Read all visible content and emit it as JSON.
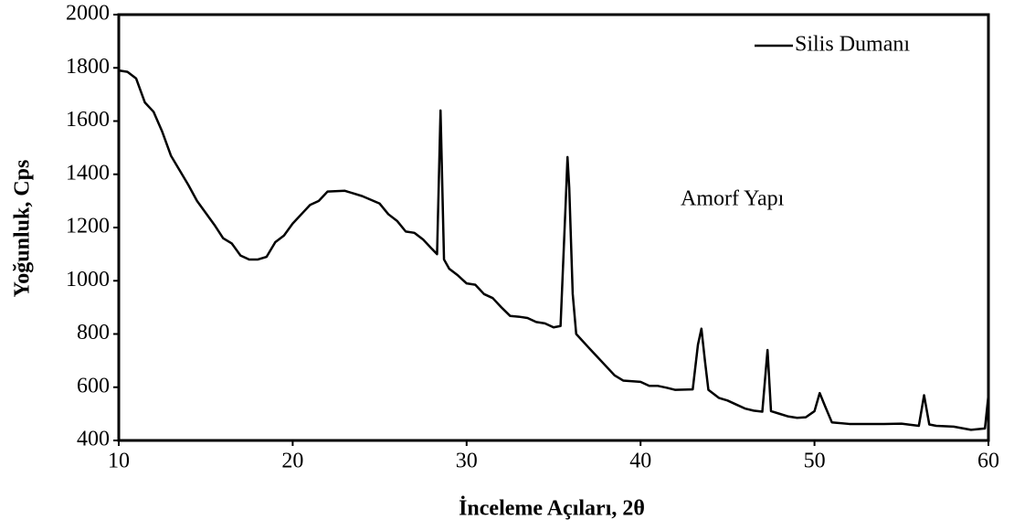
{
  "chart_data": {
    "type": "line",
    "x_label": "İnceleme Açıları, 2θ",
    "y_label": "Yoğunluk, Cps",
    "annotation": "Amorf Yapı",
    "legend": "upper right",
    "xlim": [
      10,
      60
    ],
    "xticks": [
      10,
      20,
      30,
      40,
      50,
      60
    ],
    "ylim": [
      400,
      2000
    ],
    "yticks": [
      400,
      600,
      800,
      1000,
      1200,
      1400,
      1600,
      1800,
      2000
    ],
    "grid": false,
    "x": [
      10,
      10.5,
      11,
      11.5,
      12,
      12.5,
      13,
      14,
      14.5,
      15,
      15.5,
      16,
      16.5,
      17,
      17.5,
      18,
      18.5,
      19,
      19.5,
      20,
      20.5,
      21,
      21.5,
      22,
      23,
      23.5,
      24,
      25,
      25.5,
      26,
      26.5,
      27,
      27.5,
      28,
      28.3,
      28.5,
      28.7,
      29,
      29.5,
      30,
      30.5,
      31,
      31.5,
      32,
      32.5,
      33,
      33.5,
      34,
      34.5,
      35,
      35.4,
      35.7,
      35.8,
      35.9,
      36.1,
      36.3,
      37,
      37.5,
      38,
      38.5,
      39,
      40,
      40.5,
      41,
      41.5,
      42,
      43,
      43.3,
      43.5,
      43.7,
      43.9,
      44.5,
      45,
      45.5,
      46,
      46.5,
      47,
      47.3,
      47.5,
      48,
      48.5,
      49,
      49.5,
      50,
      50.3,
      50.6,
      51,
      52,
      53,
      54,
      55,
      56,
      56.3,
      56.6,
      57,
      58,
      59,
      59.8,
      60
    ],
    "series": [
      {
        "name": "Silis Dumanı",
        "color": "#000000",
        "values": [
          1790,
          1785,
          1760,
          1670,
          1635,
          1560,
          1470,
          1360,
          1300,
          1255,
          1210,
          1160,
          1140,
          1095,
          1080,
          1080,
          1090,
          1145,
          1170,
          1215,
          1250,
          1285,
          1300,
          1335,
          1338,
          1328,
          1318,
          1290,
          1250,
          1225,
          1185,
          1180,
          1155,
          1120,
          1100,
          1640,
          1080,
          1045,
          1020,
          990,
          985,
          950,
          935,
          900,
          868,
          865,
          860,
          845,
          840,
          825,
          830,
          1300,
          1465,
          1350,
          950,
          800,
          750,
          715,
          680,
          645,
          625,
          620,
          605,
          605,
          598,
          590,
          592,
          760,
          820,
          700,
          590,
          560,
          550,
          535,
          520,
          512,
          508,
          740,
          510,
          500,
          490,
          485,
          487,
          510,
          578,
          530,
          468,
          462,
          462,
          462,
          463,
          455,
          570,
          460,
          455,
          452,
          440,
          445,
          570
        ]
      }
    ]
  }
}
